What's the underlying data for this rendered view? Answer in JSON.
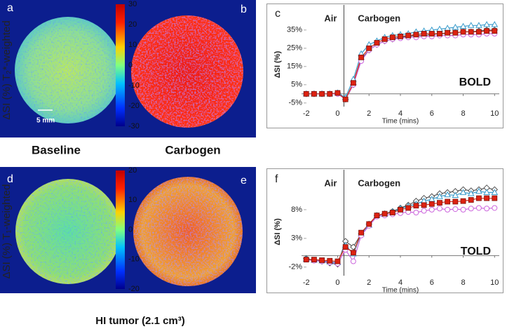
{
  "panel_labels": [
    "a",
    "b",
    "c",
    "d",
    "e",
    "f"
  ],
  "maps": [
    {
      "ylabel": "ΔSI (%) T₂*-weighted",
      "colorbar_ticks": [
        30,
        20,
        10,
        0,
        -10,
        -20,
        -30
      ],
      "scale_bar": "5 mm"
    },
    {
      "ylabel": "ΔSI (%) T₁-weighted",
      "colorbar_ticks": [
        20,
        10,
        0,
        -10,
        -20
      ]
    }
  ],
  "conditions": [
    "Baseline",
    "Carbogen"
  ],
  "caption": "HI tumor (2.1 cm³)",
  "chart_data": [
    {
      "type": "line",
      "label": "BOLD",
      "annotations": [
        "Air",
        "Carbogen"
      ],
      "divider_x": 0.4,
      "ylabel": "ΔSI (%)",
      "xlabel": "Time (mins)",
      "x": [
        -2,
        -1.5,
        -1,
        -0.5,
        0,
        0.5,
        1,
        1.5,
        2,
        2.5,
        3,
        3.5,
        4,
        4.5,
        5,
        5.5,
        6,
        6.5,
        7,
        7.5,
        8,
        8.5,
        9,
        9.5,
        10
      ],
      "xlim": [
        -2.3,
        10.3
      ],
      "xticks": [
        -2,
        0,
        2,
        4,
        6,
        8,
        10
      ],
      "ylim": [
        -7,
        43
      ],
      "yticks": [
        {
          "value": -5,
          "label": "-5%"
        },
        {
          "value": 5,
          "label": "5%"
        },
        {
          "value": 15,
          "label": "15%"
        },
        {
          "value": 25,
          "label": "25%"
        },
        {
          "value": 35,
          "label": "35%"
        }
      ],
      "series": [
        {
          "color": "#555555",
          "marker": "diamond",
          "values": [
            0,
            0,
            0,
            0,
            0.5,
            -3,
            5,
            19,
            24,
            27,
            29,
            30,
            31,
            31.5,
            32,
            32,
            32.5,
            33,
            33,
            33.5,
            34,
            34,
            34.5,
            35,
            35
          ]
        },
        {
          "color": "#3a9ccc",
          "marker": "triangle",
          "values": [
            0,
            0,
            0,
            0,
            0.5,
            -2,
            8,
            22,
            27,
            29,
            31,
            32,
            32.5,
            33,
            34,
            34.5,
            35,
            35.5,
            36,
            36.5,
            37,
            37.5,
            37.5,
            38,
            38
          ]
        },
        {
          "color": "#cc66dd",
          "marker": "circle",
          "values": [
            0,
            0,
            0,
            0,
            0,
            -3,
            5,
            18,
            24,
            27,
            29,
            30,
            30.5,
            31,
            31,
            31.5,
            31.5,
            32,
            32,
            32,
            32.5,
            32.5,
            32.5,
            33,
            33
          ]
        },
        {
          "color": "#dd2211",
          "marker": "square",
          "values": [
            0,
            0,
            0,
            0,
            0.5,
            -3,
            6,
            20,
            25,
            28,
            30,
            31,
            31.5,
            32,
            32.5,
            33,
            33,
            33,
            33.5,
            33.5,
            34,
            34,
            34,
            34.5,
            34.5
          ]
        }
      ]
    },
    {
      "type": "line",
      "label": "TOLD",
      "annotations": [
        "Air",
        "Carbogen"
      ],
      "divider_x": 0.4,
      "ylabel": "ΔSI (%)",
      "xlabel": "Time (mins)",
      "x": [
        -2,
        -1.5,
        -1,
        -0.5,
        0,
        0.5,
        1,
        1.5,
        2,
        2.5,
        3,
        3.5,
        4,
        4.5,
        5,
        5.5,
        6,
        6.5,
        7,
        7.5,
        8,
        8.5,
        9,
        9.5,
        10
      ],
      "xlim": [
        -2.3,
        10.3
      ],
      "xticks": [
        -2,
        0,
        2,
        4,
        6,
        8,
        10
      ],
      "ylim": [
        -3.5,
        13
      ],
      "yticks": [
        {
          "value": -2,
          "label": "-2%"
        },
        {
          "value": 3,
          "label": "3%"
        },
        {
          "value": 8,
          "label": "8%"
        }
      ],
      "series": [
        {
          "color": "#555555",
          "marker": "diamond",
          "values": [
            -0.5,
            -0.8,
            -1,
            -1.3,
            -1.5,
            2.5,
            1.5,
            3.8,
            5.5,
            7,
            7.3,
            7.7,
            8.3,
            8.8,
            9.5,
            10,
            10.3,
            10.8,
            11,
            11.2,
            11.5,
            11.3,
            11.5,
            11.8,
            11.5
          ]
        },
        {
          "color": "#3a9ccc",
          "marker": "triangle",
          "values": [
            -0.6,
            -0.8,
            -0.9,
            -1.1,
            -1.2,
            1.8,
            0.3,
            3.8,
            5.3,
            7,
            7.2,
            7.6,
            8.2,
            8.6,
            9,
            9.5,
            9.8,
            10.3,
            10.6,
            10.5,
            11,
            10.8,
            11.2,
            11,
            11
          ]
        },
        {
          "color": "#cc66dd",
          "marker": "circle",
          "values": [
            -0.7,
            -0.9,
            -1,
            -1.2,
            -1.4,
            1,
            -1,
            3.5,
            5.2,
            6.8,
            7,
            7.2,
            7.4,
            7.6,
            7.5,
            7.8,
            8,
            8.2,
            8,
            8.1,
            8,
            8.2,
            8.3,
            8.2,
            8.3
          ]
        },
        {
          "color": "#dd2211",
          "marker": "square",
          "values": [
            -0.7,
            -0.7,
            -0.8,
            -0.9,
            -1,
            1.5,
            0.5,
            4,
            5.5,
            7,
            7.3,
            7.5,
            8,
            8.3,
            8.7,
            8.8,
            9,
            9.2,
            9.4,
            9.4,
            9.5,
            9.7,
            10,
            10,
            10
          ]
        }
      ]
    }
  ]
}
